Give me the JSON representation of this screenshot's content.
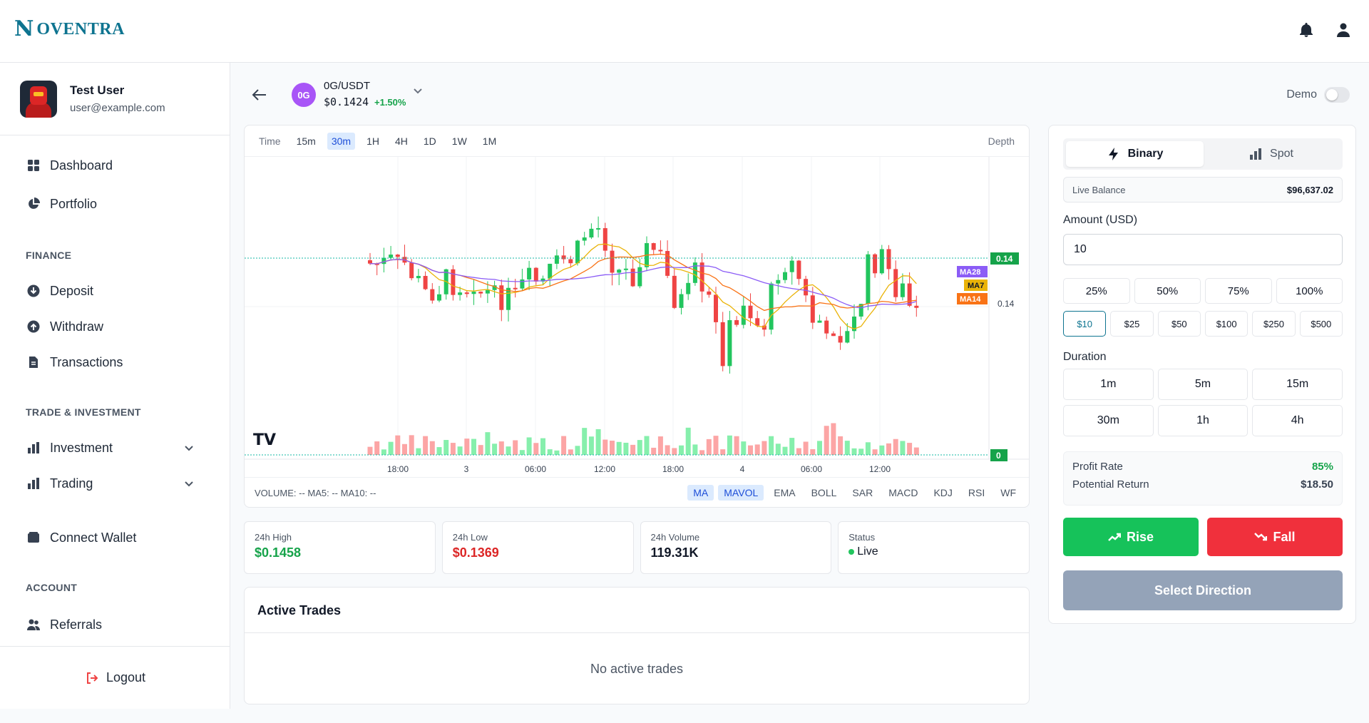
{
  "brand": {
    "mark": "N",
    "name": "OVENTRA"
  },
  "user": {
    "name": "Test User",
    "email": "user@example.com"
  },
  "nav": {
    "dashboard": "Dashboard",
    "portfolio": "Portfolio",
    "finance_title": "FINANCE",
    "deposit": "Deposit",
    "withdraw": "Withdraw",
    "transactions": "Transactions",
    "trade_title": "TRADE & INVESTMENT",
    "investment": "Investment",
    "trading": "Trading",
    "connect_wallet": "Connect Wallet",
    "account_title": "ACCOUNT",
    "referrals": "Referrals",
    "logout": "Logout"
  },
  "pair": {
    "icon_text": "0G",
    "name": "0G/USDT",
    "price": "$0.1424",
    "change": "+1.50%",
    "demo_label": "Demo"
  },
  "chart": {
    "time_label": "Time",
    "timeframes": [
      "15m",
      "30m",
      "1H",
      "4H",
      "1D",
      "1W",
      "1M"
    ],
    "active_timeframe": "30m",
    "depth_label": "Depth",
    "x_ticks": [
      "18:00",
      "3",
      "06:00",
      "12:00",
      "18:00",
      "4",
      "06:00",
      "12:00"
    ],
    "price_tag": "0.14",
    "price_level": "0.14",
    "volume_tag": "0",
    "ma_labels": [
      "MA28",
      "MA7",
      "MA14"
    ],
    "volume_text": "VOLUME: -- MA5: -- MA10: --",
    "indicators": [
      "MA",
      "MAVOL",
      "EMA",
      "BOLL",
      "SAR",
      "MACD",
      "KDJ",
      "RSI",
      "WF"
    ]
  },
  "chart_data": {
    "type": "candlestick",
    "pair": "0G/USDT",
    "interval": "30m",
    "x_ticks": [
      "18:00",
      "3",
      "06:00",
      "12:00",
      "18:00",
      "4",
      "06:00",
      "12:00"
    ],
    "y_labels": [
      "0.14",
      "0.14"
    ],
    "indicators_on": [
      "MA7",
      "MA14",
      "MA28",
      "MAVOL"
    ]
  },
  "stats": [
    {
      "label": "24h High",
      "value": "$0.1458"
    },
    {
      "label": "24h Low",
      "value": "$0.1369"
    },
    {
      "label": "24h Volume",
      "value": "119.31K"
    },
    {
      "label": "Status",
      "value": "Live"
    }
  ],
  "trades": {
    "title": "Active Trades",
    "empty": "No active trades"
  },
  "panel": {
    "binary": "Binary",
    "spot": "Spot",
    "balance_label": "Live Balance",
    "balance": "$96,637.02",
    "amount_label": "Amount (USD)",
    "amount_value": "10",
    "percents": [
      "25%",
      "50%",
      "75%",
      "100%"
    ],
    "presets": [
      "$10",
      "$25",
      "$50",
      "$100",
      "$250",
      "$500"
    ],
    "duration_label": "Duration",
    "durations": [
      "1m",
      "5m",
      "15m",
      "30m",
      "1h",
      "4h"
    ],
    "profit_label": "Profit Rate",
    "profit": "85%",
    "return_label": "Potential Return",
    "return": "$18.50",
    "rise": "Rise",
    "fall": "Fall",
    "select": "Select Direction"
  },
  "colors": {
    "up": "#22c55e",
    "down": "#ef4444",
    "accent": "#0e7490",
    "ma7": "#eab308",
    "ma14": "#f97316",
    "ma28": "#8b5cf6"
  }
}
